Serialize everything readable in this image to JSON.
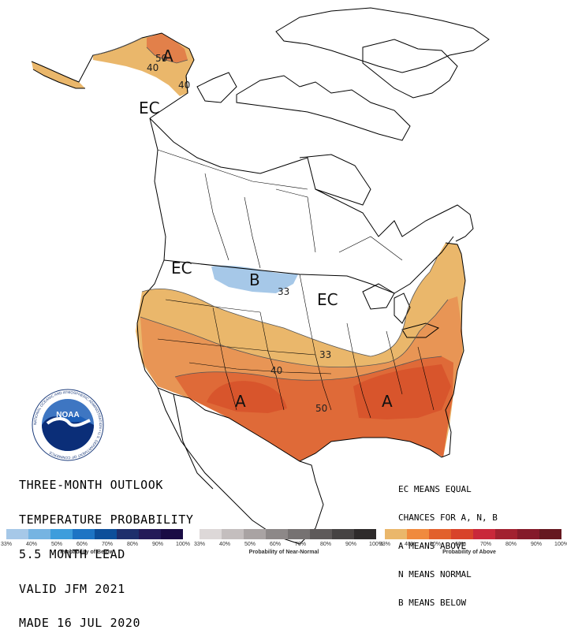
{
  "title_lines": [
    "THREE-MONTH OUTLOOK",
    "TEMPERATURE PROBABILITY",
    "5.5 MONTH LEAD",
    "VALID JFM 2021",
    "MADE 16 JUL 2020"
  ],
  "legend_notes": [
    "EC MEANS EQUAL",
    "CHANCES FOR A, N, B",
    "A MEANS ABOVE",
    "N MEANS NORMAL",
    "B MEANS BELOW"
  ],
  "region_labels": {
    "alaska_a": "A",
    "alaska_ec": "EC",
    "northwest_ec": "EC",
    "montana_b": "B",
    "midwest_ec": "EC",
    "southwest_a": "A",
    "southeast_a": "A"
  },
  "contour_labels": {
    "ak_50": "50",
    "ak_40_w": "40",
    "ak_40_e": "40",
    "b_33": "33",
    "c33": "33",
    "c40": "40",
    "c50": "50"
  },
  "colorbars": {
    "below": {
      "title": "Probability of Below",
      "colors": [
        "#a6c8e8",
        "#76b4e2",
        "#3d9ddc",
        "#1d74c4",
        "#0d4f9a",
        "#1e2f6c",
        "#241a58",
        "#1a0c45"
      ],
      "ticks": [
        "33%",
        "40%",
        "50%",
        "60%",
        "70%",
        "80%",
        "90%",
        "100%"
      ]
    },
    "normal": {
      "title": "Probability of Near-Normal",
      "colors": [
        "#ddd8d8",
        "#c4bebe",
        "#a9a3a3",
        "#8d8888",
        "#767272",
        "#5e5a5a",
        "#464343",
        "#2e2b2b"
      ],
      "ticks": [
        "33%",
        "40%",
        "50%",
        "60%",
        "70%",
        "80%",
        "90%",
        "100%"
      ]
    },
    "above": {
      "title": "Probability of Above",
      "colors": [
        "#eab76b",
        "#f08a3e",
        "#e2602c",
        "#d8432a",
        "#c9283a",
        "#a22130",
        "#851a2a",
        "#661820"
      ],
      "ticks": [
        "33%",
        "40%",
        "50%",
        "60%",
        "70%",
        "80%",
        "90%",
        "100%"
      ]
    }
  },
  "noaa_logo": {
    "wordmark": "NOAA",
    "ring_text": "NATIONAL OCEANIC AND ATMOSPHERIC ADMINISTRATION • U.S. DEPARTMENT OF COMMERCE"
  }
}
